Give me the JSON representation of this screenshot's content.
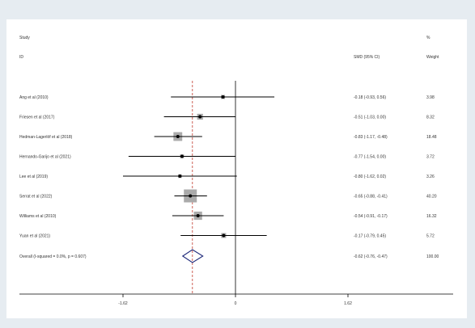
{
  "chart_data": {
    "type": "forest",
    "columns": {
      "study_header": "Study",
      "id_header": "ID",
      "ci_header": "SMD (95% CI)",
      "pct_header": "%",
      "weight_header": "Weight"
    },
    "studies": [
      {
        "label": "Ang et al (2010)",
        "smd": -0.18,
        "lower": -0.93,
        "upper": 0.56,
        "ci_text": "-0.18 (-0.93, 0.56)",
        "weight": 3.98,
        "weight_text": "3.98"
      },
      {
        "label": "Friesen et al (2017)",
        "smd": -0.51,
        "lower": -1.03,
        "upper": 0.0,
        "ci_text": "-0.51 (-1.03, 0.00)",
        "weight": 8.32,
        "weight_text": "8.32"
      },
      {
        "label": "Hedman-Lagerlöf et al (2018)",
        "smd": -0.83,
        "lower": -1.17,
        "upper": -0.48,
        "ci_text": "-0.83 (-1.17, -0.48)",
        "weight": 18.48,
        "weight_text": "18.48"
      },
      {
        "label": "Hernando-Garijo et al  (2021)",
        "smd": -0.77,
        "lower": -1.54,
        "upper": 0.0,
        "ci_text": "-0.77 (-1.54, 0.00)",
        "weight": 3.72,
        "weight_text": "3.72"
      },
      {
        "label": "Lee et al (2019)",
        "smd": -0.8,
        "lower": -1.62,
        "upper": 0.02,
        "ci_text": "-0.80 (-1.62, 0.02)",
        "weight": 3.26,
        "weight_text": "3.26"
      },
      {
        "label": "Serrat et al (2022)",
        "smd": -0.65,
        "lower": -0.88,
        "upper": -0.41,
        "ci_text": "-0.65 (-0.88, -0.41)",
        "weight": 40.2,
        "weight_text": "40.20"
      },
      {
        "label": "Williams et al (2010)",
        "smd": -0.54,
        "lower": -0.91,
        "upper": -0.17,
        "ci_text": "-0.54 (-0.91, -0.17)",
        "weight": 16.32,
        "weight_text": "16.32"
      },
      {
        "label": "Yuan et al (2021)",
        "smd": -0.17,
        "lower": -0.79,
        "upper": 0.45,
        "ci_text": "-0.17 (-0.79, 0.45)",
        "weight": 5.72,
        "weight_text": "5.72"
      }
    ],
    "overall": {
      "label": "Overall  (I-squared = 0.0%, p = 0.607)",
      "smd": -0.62,
      "lower": -0.76,
      "upper": -0.47,
      "ci_text": "-0.62 (-0.76, -0.47)",
      "weight_text": "100.00"
    },
    "x_ticks": [
      -1.62,
      0,
      1.62
    ],
    "x_tick_labels": [
      "-1.62",
      "0",
      "1.62"
    ],
    "xlim": [
      -1.62,
      1.62
    ],
    "null_line": 0,
    "colors": {
      "panel_background": "#ffffff",
      "page_background": "#e6ecf1",
      "ci_line": "#000000",
      "weight_box": "#aaaaaa",
      "point": "#000000",
      "diamond": "#1f2a7a",
      "overall_line": "#c0392b",
      "text": "#333333"
    }
  }
}
